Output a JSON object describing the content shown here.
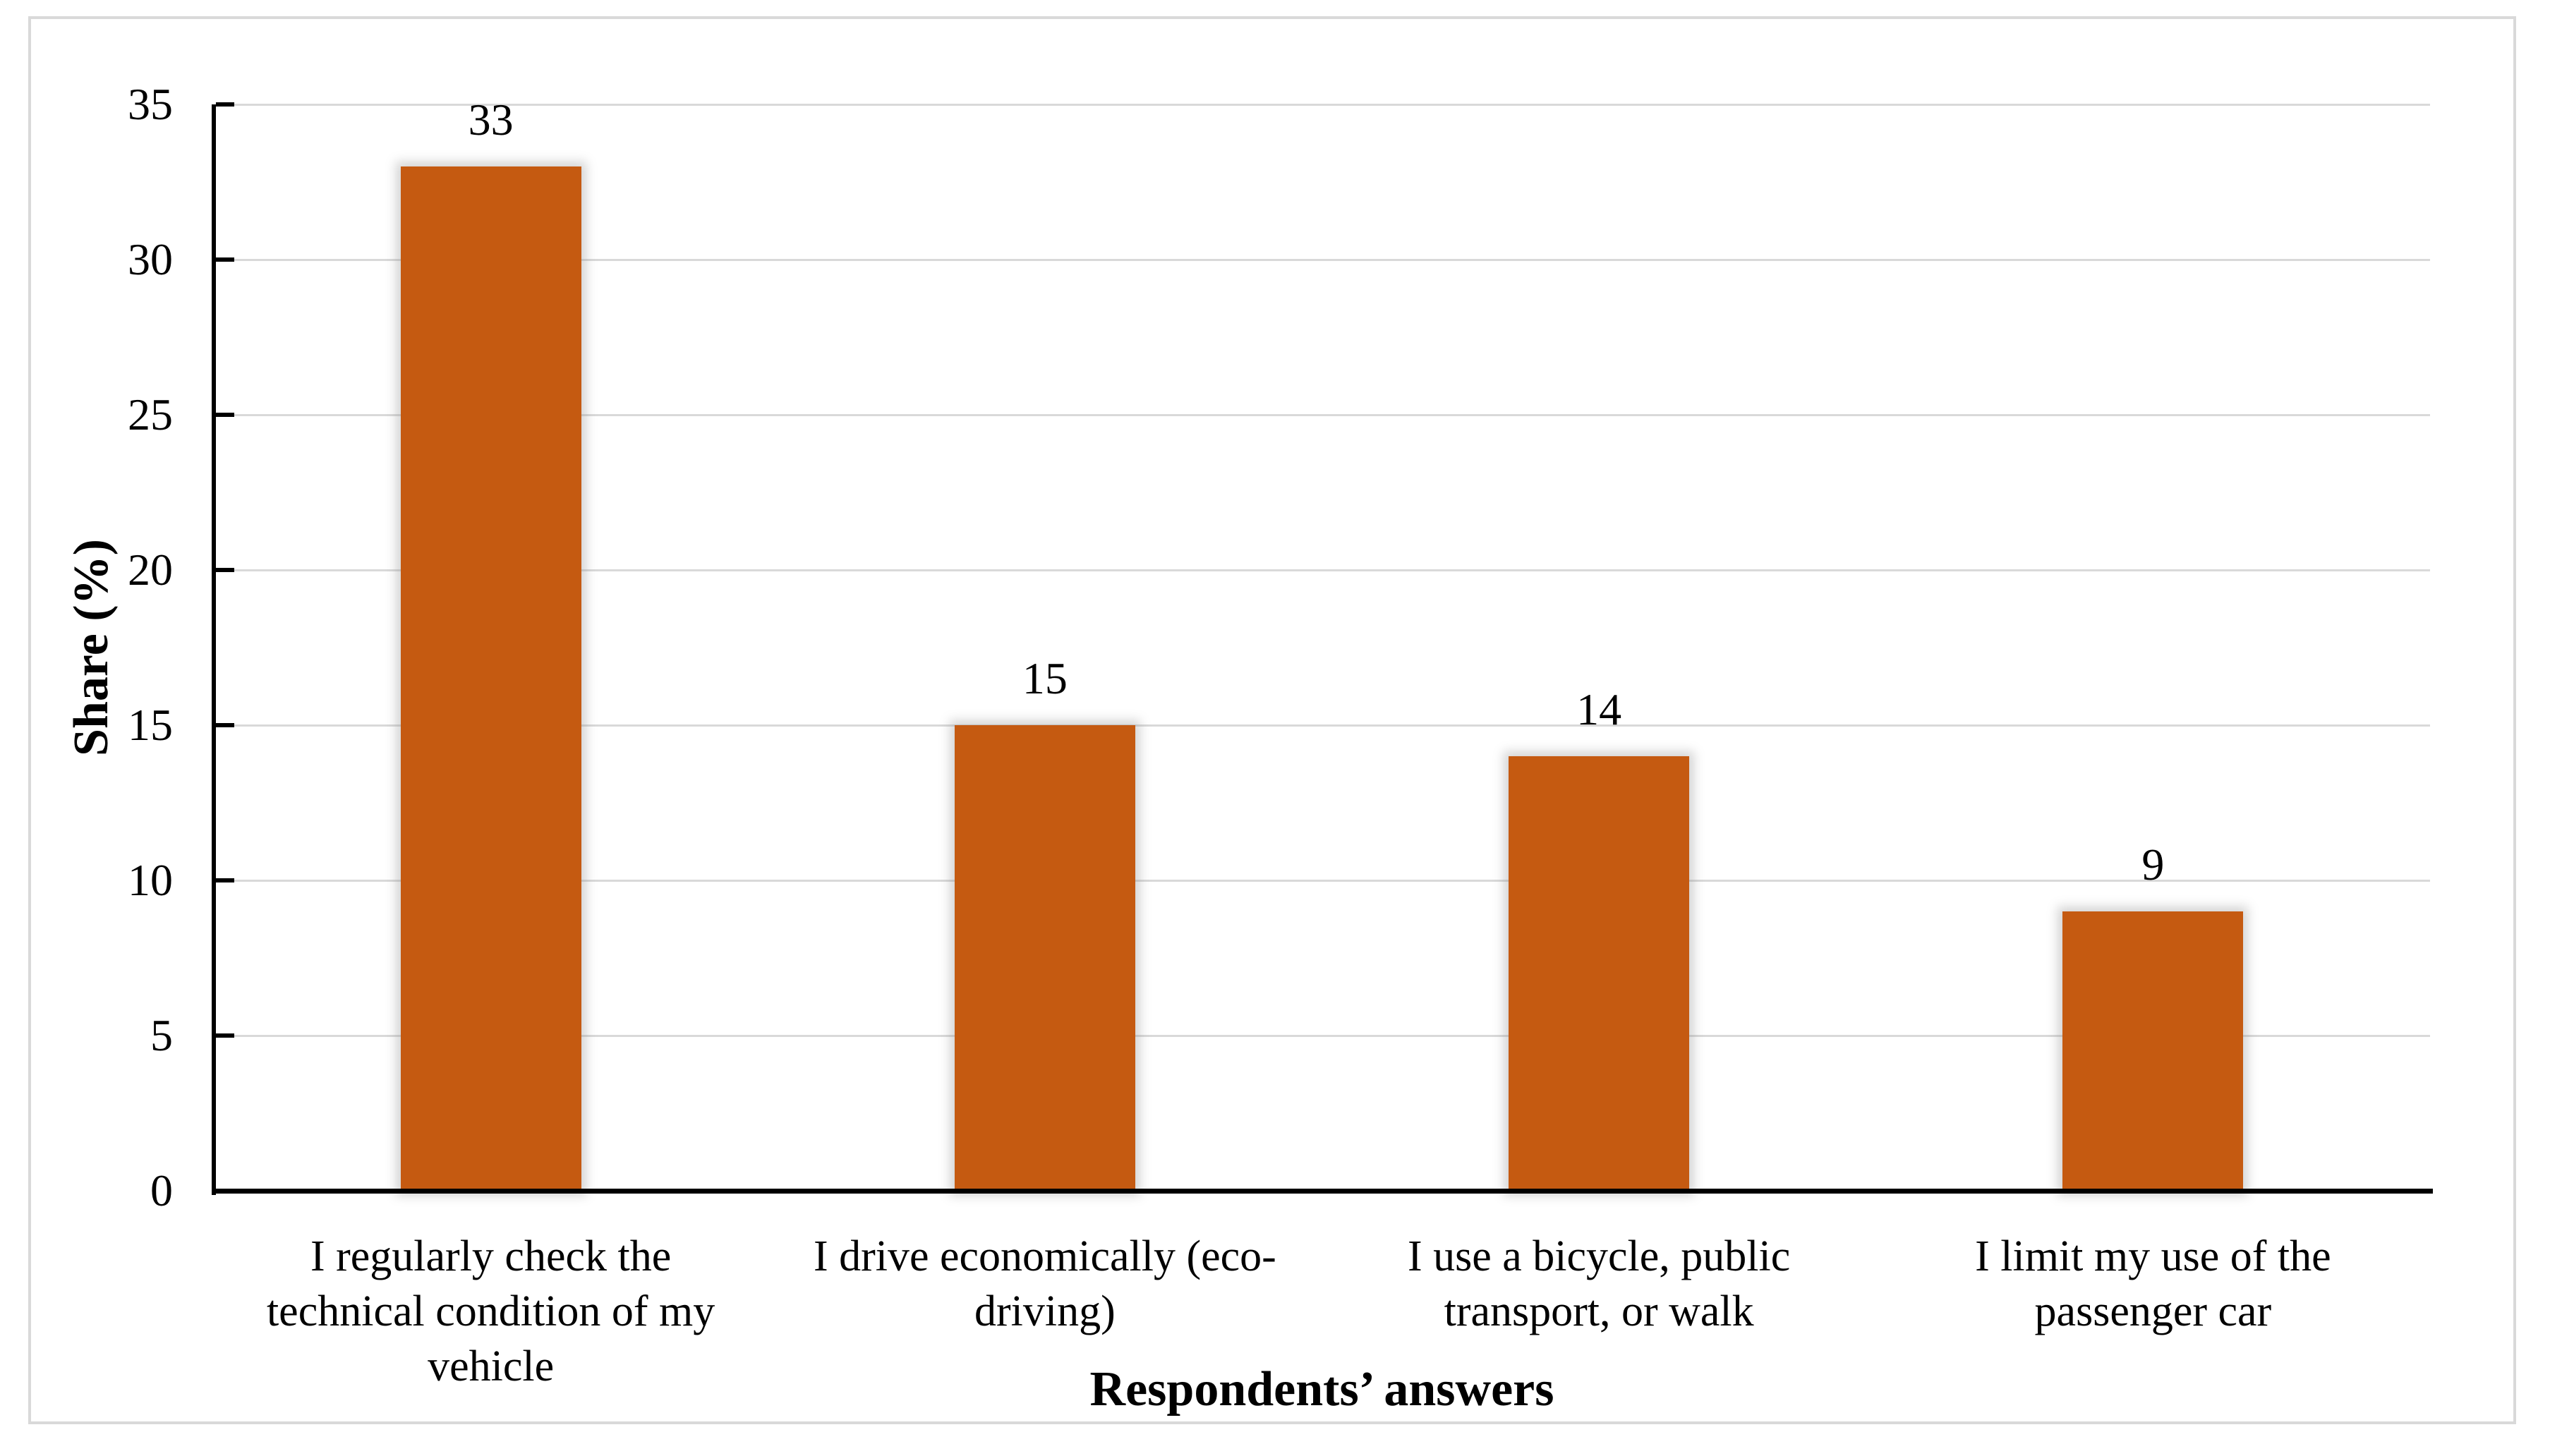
{
  "chart_data": {
    "type": "bar",
    "title": "",
    "categories": [
      "I regularly check the technical condition of my vehicle",
      "I drive economically (eco-driving)",
      "I use a bicycle, public transport, or walk",
      "I limit my use of the passenger car"
    ],
    "category_lines": [
      [
        "I regularly check the",
        "technical condition of my",
        "vehicle"
      ],
      [
        "I drive economically (eco-",
        "driving)"
      ],
      [
        "I use a bicycle, public",
        "transport, or walk"
      ],
      [
        "I limit my use of the",
        "passenger car"
      ]
    ],
    "values": [
      33,
      15,
      14,
      9
    ],
    "bar_value_labels": [
      "33",
      "15",
      "14",
      "9"
    ],
    "xlabel": "Respondents’ answers",
    "ylabel": "Share (%)",
    "ylim": [
      0,
      35
    ],
    "yticks": [
      0,
      5,
      10,
      15,
      20,
      25,
      30,
      35
    ],
    "grid": true,
    "legend": "none",
    "colors": {
      "bar_fill": "#C55A11",
      "gridline": "#D9D9D9",
      "axis_line": "#000000",
      "figure_border": "#D9D9D9",
      "text": "#000000",
      "background": "#FFFFFF"
    }
  }
}
